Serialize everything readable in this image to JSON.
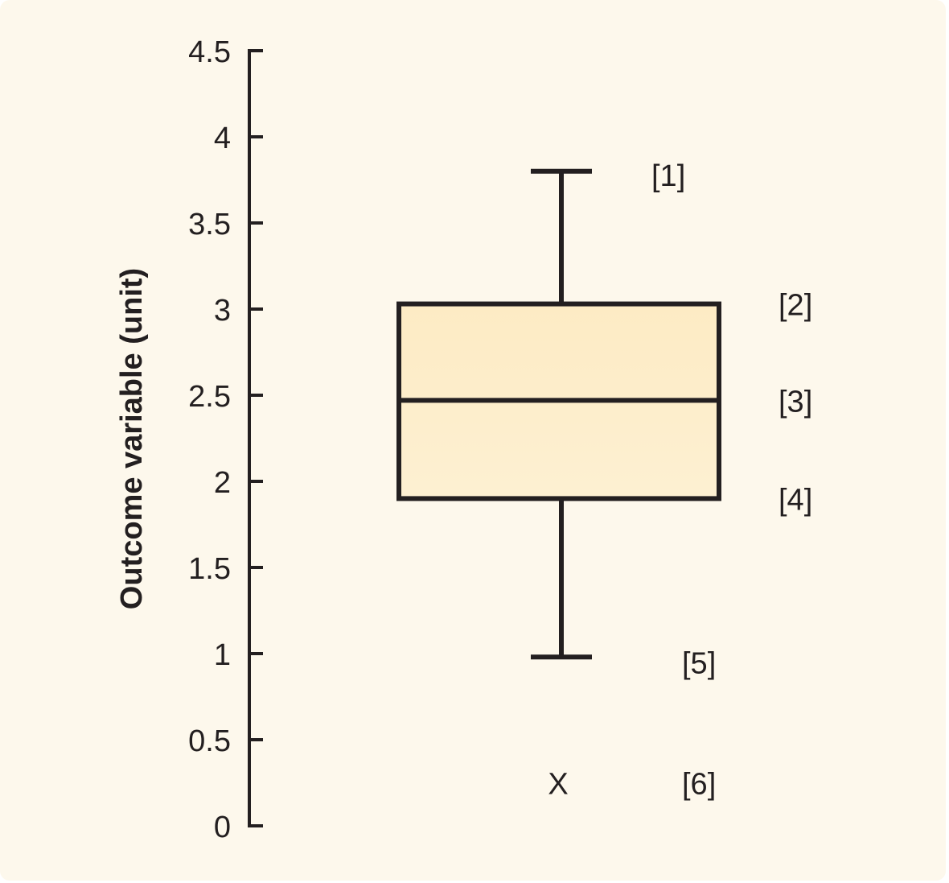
{
  "chart_data": {
    "type": "box",
    "ylabel": "Outcome variable (unit)",
    "ylim": [
      0,
      4.5
    ],
    "yticks": [
      0,
      0.5,
      1,
      1.5,
      2,
      2.5,
      3,
      3.5,
      4,
      4.5
    ],
    "ytick_labels": [
      "0",
      "0.5",
      "1",
      "1.5",
      "2",
      "2.5",
      "3",
      "3.5",
      "4",
      "4.5"
    ],
    "grid": false,
    "box": {
      "whisker_high": 3.8,
      "q3": 3.03,
      "median": 2.47,
      "q1": 1.9,
      "whisker_low": 0.98,
      "outlier": 0.25
    },
    "outlier_marker": "X",
    "annotations": [
      {
        "label": "[1]",
        "value": 3.8
      },
      {
        "label": "[2]",
        "value": 3.03
      },
      {
        "label": "[3]",
        "value": 2.47
      },
      {
        "label": "[4]",
        "value": 1.9
      },
      {
        "label": "[5]",
        "value": 0.98
      },
      {
        "label": "[6]",
        "value": 0.25
      }
    ],
    "colors": {
      "background": "#fdf8ec",
      "box_fill": "#fdebc4",
      "stroke": "#231f20"
    }
  }
}
